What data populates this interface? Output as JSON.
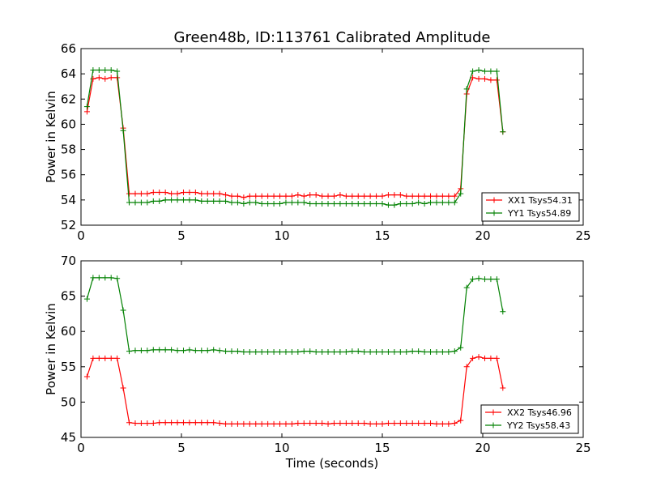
{
  "figure": {
    "title": "Green48b, ID:113761 Calibrated Amplitude"
  },
  "chart_data": [
    {
      "type": "line",
      "title": "Green48b, ID:113761 Calibrated Amplitude",
      "xlabel": "",
      "ylabel": "Power in Kelvin",
      "xlim": [
        0,
        25
      ],
      "ylim": [
        52,
        66
      ],
      "xticks": [
        0,
        5,
        10,
        15,
        20,
        25
      ],
      "yticks": [
        52,
        54,
        56,
        58,
        60,
        62,
        64,
        66
      ],
      "grid": false,
      "legend_position": "lower-right",
      "x": [
        0.3,
        0.6,
        0.9,
        1.2,
        1.5,
        1.8,
        2.1,
        2.4,
        2.7,
        3.0,
        3.3,
        3.6,
        3.9,
        4.2,
        4.5,
        4.8,
        5.1,
        5.4,
        5.7,
        6.0,
        6.3,
        6.6,
        6.9,
        7.2,
        7.5,
        7.8,
        8.1,
        8.4,
        8.7,
        9.0,
        9.3,
        9.6,
        9.9,
        10.2,
        10.5,
        10.8,
        11.1,
        11.4,
        11.7,
        12.0,
        12.3,
        12.6,
        12.9,
        13.2,
        13.5,
        13.8,
        14.1,
        14.4,
        14.7,
        15.0,
        15.3,
        15.6,
        15.9,
        16.2,
        16.5,
        16.8,
        17.1,
        17.4,
        17.7,
        18.0,
        18.3,
        18.6,
        18.9,
        19.2,
        19.5,
        19.8,
        20.1,
        20.4,
        20.7,
        21.0
      ],
      "series": [
        {
          "name": "XX1 Tsys54.31",
          "color": "#ff0000",
          "values": [
            61.0,
            63.6,
            63.7,
            63.6,
            63.7,
            63.7,
            59.7,
            54.5,
            54.5,
            54.5,
            54.5,
            54.6,
            54.6,
            54.6,
            54.5,
            54.5,
            54.6,
            54.6,
            54.6,
            54.5,
            54.5,
            54.5,
            54.5,
            54.4,
            54.3,
            54.3,
            54.2,
            54.3,
            54.3,
            54.3,
            54.3,
            54.3,
            54.3,
            54.3,
            54.3,
            54.4,
            54.3,
            54.4,
            54.4,
            54.3,
            54.3,
            54.3,
            54.4,
            54.3,
            54.3,
            54.3,
            54.3,
            54.3,
            54.3,
            54.3,
            54.4,
            54.4,
            54.4,
            54.3,
            54.3,
            54.3,
            54.3,
            54.3,
            54.3,
            54.3,
            54.3,
            54.3,
            54.9,
            62.4,
            63.7,
            63.6,
            63.6,
            63.5,
            63.5,
            59.4
          ]
        },
        {
          "name": "YY1 Tsys54.89",
          "color": "#008000",
          "values": [
            61.4,
            64.3,
            64.3,
            64.3,
            64.3,
            64.2,
            59.5,
            53.8,
            53.8,
            53.8,
            53.8,
            53.9,
            53.9,
            54.0,
            54.0,
            54.0,
            54.0,
            54.0,
            54.0,
            53.9,
            53.9,
            53.9,
            53.9,
            53.9,
            53.8,
            53.8,
            53.7,
            53.8,
            53.8,
            53.7,
            53.7,
            53.7,
            53.7,
            53.8,
            53.8,
            53.8,
            53.8,
            53.7,
            53.7,
            53.7,
            53.7,
            53.7,
            53.7,
            53.7,
            53.7,
            53.7,
            53.7,
            53.7,
            53.7,
            53.7,
            53.6,
            53.6,
            53.7,
            53.7,
            53.7,
            53.8,
            53.7,
            53.8,
            53.8,
            53.8,
            53.8,
            53.8,
            54.5,
            62.8,
            64.2,
            64.3,
            64.2,
            64.2,
            64.2,
            59.4
          ]
        }
      ]
    },
    {
      "type": "line",
      "title": "",
      "xlabel": "Time (seconds)",
      "ylabel": "Power in Kelvin",
      "xlim": [
        0,
        25
      ],
      "ylim": [
        45,
        70
      ],
      "xticks": [
        0,
        5,
        10,
        15,
        20,
        25
      ],
      "yticks": [
        45,
        50,
        55,
        60,
        65,
        70
      ],
      "grid": false,
      "legend_position": "lower-right",
      "x": [
        0.3,
        0.6,
        0.9,
        1.2,
        1.5,
        1.8,
        2.1,
        2.4,
        2.7,
        3.0,
        3.3,
        3.6,
        3.9,
        4.2,
        4.5,
        4.8,
        5.1,
        5.4,
        5.7,
        6.0,
        6.3,
        6.6,
        6.9,
        7.2,
        7.5,
        7.8,
        8.1,
        8.4,
        8.7,
        9.0,
        9.3,
        9.6,
        9.9,
        10.2,
        10.5,
        10.8,
        11.1,
        11.4,
        11.7,
        12.0,
        12.3,
        12.6,
        12.9,
        13.2,
        13.5,
        13.8,
        14.1,
        14.4,
        14.7,
        15.0,
        15.3,
        15.6,
        15.9,
        16.2,
        16.5,
        16.8,
        17.1,
        17.4,
        17.7,
        18.0,
        18.3,
        18.6,
        18.9,
        19.2,
        19.5,
        19.8,
        20.1,
        20.4,
        20.7,
        21.0
      ],
      "series": [
        {
          "name": "XX2 Tsys46.96",
          "color": "#ff0000",
          "values": [
            53.6,
            56.2,
            56.2,
            56.2,
            56.2,
            56.2,
            52.0,
            47.1,
            47.0,
            47.0,
            47.0,
            47.0,
            47.1,
            47.1,
            47.1,
            47.1,
            47.1,
            47.1,
            47.1,
            47.1,
            47.1,
            47.1,
            47.0,
            46.9,
            46.9,
            46.9,
            46.9,
            46.9,
            46.9,
            46.9,
            46.9,
            46.9,
            46.9,
            46.9,
            46.9,
            47.0,
            47.0,
            47.0,
            47.0,
            47.0,
            46.9,
            47.0,
            47.0,
            47.0,
            47.0,
            47.0,
            47.0,
            46.9,
            46.9,
            46.9,
            47.0,
            47.0,
            47.0,
            47.0,
            47.0,
            47.0,
            47.0,
            47.0,
            46.9,
            46.9,
            46.9,
            47.0,
            47.4,
            55.0,
            56.2,
            56.4,
            56.2,
            56.2,
            56.2,
            52.0
          ]
        },
        {
          "name": "YY2 Tsys58.43",
          "color": "#008000",
          "values": [
            64.6,
            67.6,
            67.6,
            67.6,
            67.6,
            67.5,
            63.0,
            57.2,
            57.3,
            57.3,
            57.3,
            57.4,
            57.4,
            57.4,
            57.4,
            57.3,
            57.3,
            57.4,
            57.3,
            57.3,
            57.3,
            57.4,
            57.3,
            57.2,
            57.2,
            57.2,
            57.1,
            57.1,
            57.1,
            57.1,
            57.1,
            57.1,
            57.1,
            57.1,
            57.1,
            57.1,
            57.2,
            57.2,
            57.1,
            57.1,
            57.1,
            57.1,
            57.1,
            57.1,
            57.2,
            57.2,
            57.1,
            57.1,
            57.1,
            57.1,
            57.1,
            57.1,
            57.1,
            57.1,
            57.2,
            57.2,
            57.1,
            57.1,
            57.1,
            57.1,
            57.1,
            57.2,
            57.7,
            66.2,
            67.4,
            67.5,
            67.4,
            67.4,
            67.4,
            62.8
          ]
        }
      ]
    }
  ]
}
